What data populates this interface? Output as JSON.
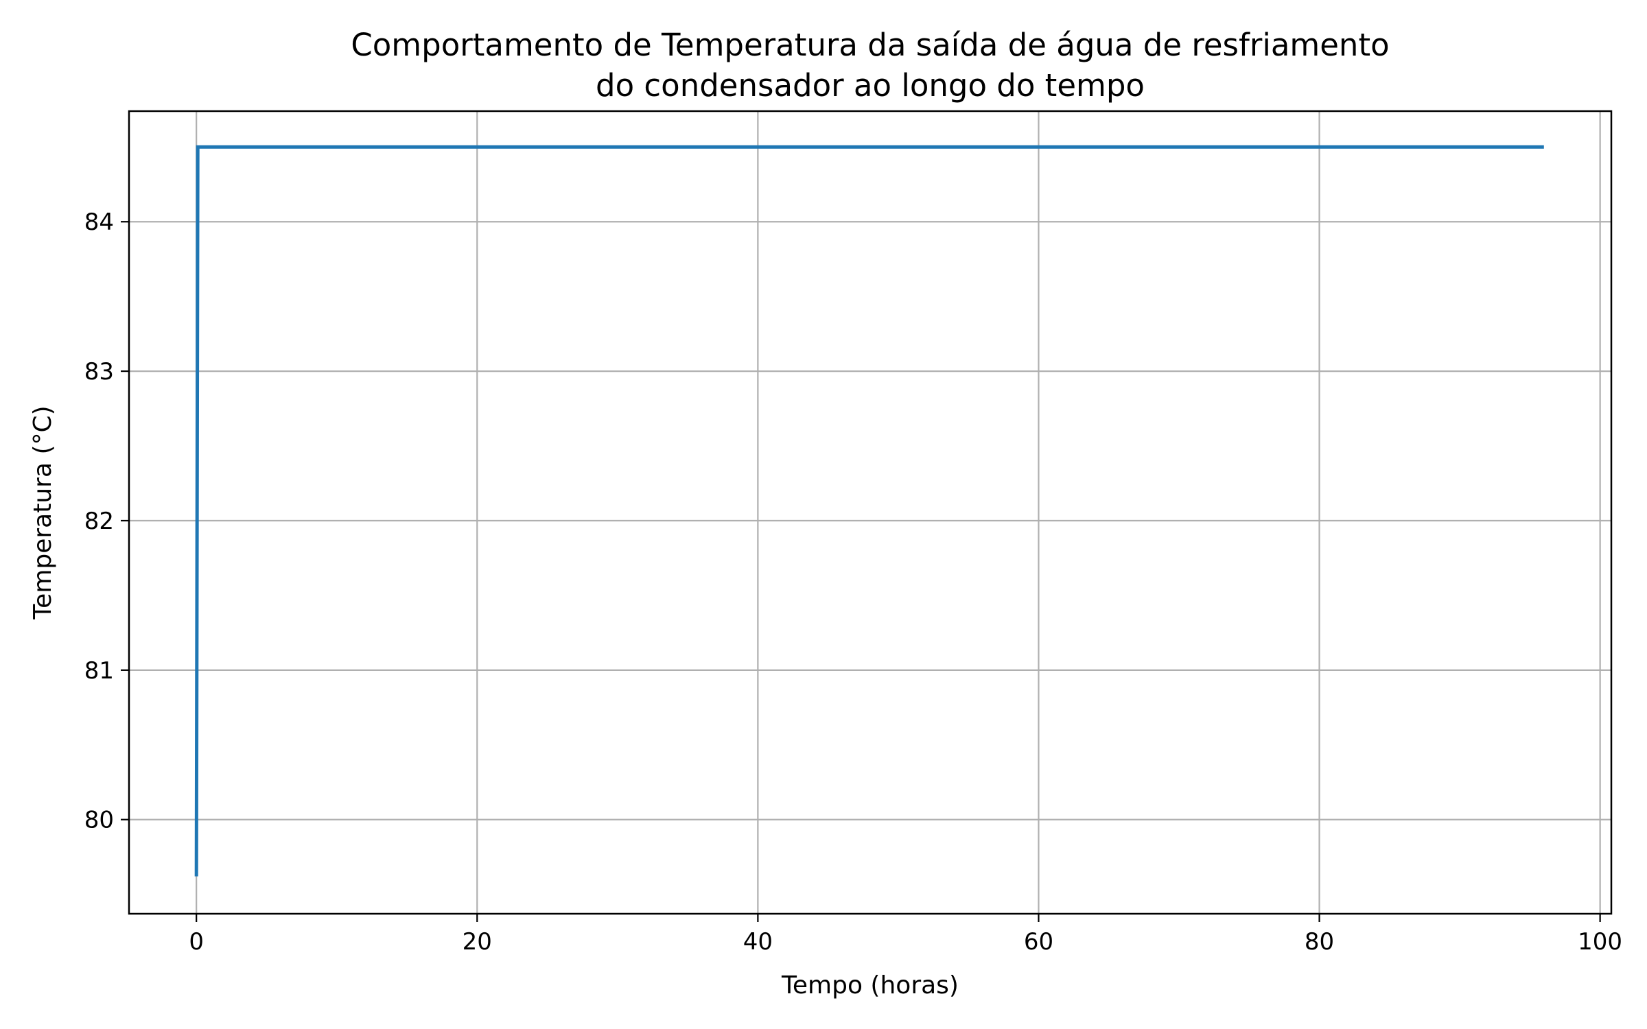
{
  "chart_data": {
    "type": "line",
    "title": "Comportamento de Temperatura da saída de água de resfriamento do condensador ao longo do tempo",
    "title_lines": [
      "Comportamento de Temperatura da saída de água de resfriamento",
      "do condensador ao longo do tempo"
    ],
    "xlabel": "Tempo (horas)",
    "ylabel": "Temperatura (°C)",
    "xlim": [
      -4.8,
      100.8
    ],
    "ylim": [
      79.37,
      84.74
    ],
    "xticks": [
      0,
      20,
      40,
      60,
      80,
      100
    ],
    "yticks": [
      80,
      81,
      82,
      83,
      84
    ],
    "xtick_labels": [
      "0",
      "20",
      "40",
      "60",
      "80",
      "100"
    ],
    "ytick_labels": [
      "80",
      "81",
      "82",
      "83",
      "84"
    ],
    "grid": true,
    "series": [
      {
        "color": "#1f77b4",
        "x": [
          0,
          0.1,
          96
        ],
        "y": [
          79.62,
          84.5,
          84.5
        ]
      }
    ]
  }
}
